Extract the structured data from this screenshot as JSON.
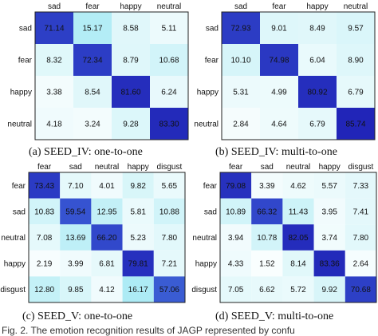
{
  "chart_data": [
    {
      "type": "heatmap",
      "caption": "(a) SEED_IV: one-to-one",
      "rows": [
        "sad",
        "fear",
        "happy",
        "neutral"
      ],
      "cols": [
        "sad",
        "fear",
        "happy",
        "neutral"
      ],
      "values": [
        [
          71.14,
          15.17,
          8.58,
          5.11
        ],
        [
          8.32,
          72.34,
          8.79,
          10.68
        ],
        [
          3.38,
          8.54,
          81.6,
          6.24
        ],
        [
          4.18,
          3.24,
          9.28,
          83.3
        ]
      ],
      "value_labels": [
        [
          "71.14",
          "15.17",
          "8.58",
          "5.11"
        ],
        [
          "8.32",
          "72.34",
          "8.79",
          "10.68"
        ],
        [
          "3.38",
          "8.54",
          "81.60",
          "6.24"
        ],
        [
          "4.18",
          "3.24",
          "9.28",
          "83.30"
        ]
      ]
    },
    {
      "type": "heatmap",
      "caption": "(b) SEED_IV: multi-to-one",
      "rows": [
        "sad",
        "fear",
        "happy",
        "neutral"
      ],
      "cols": [
        "sad",
        "fear",
        "happy",
        "neutral"
      ],
      "values": [
        [
          72.93,
          9.01,
          8.49,
          9.57
        ],
        [
          10.1,
          74.98,
          6.04,
          8.9
        ],
        [
          5.31,
          4.99,
          80.92,
          6.79
        ],
        [
          2.84,
          4.64,
          6.79,
          85.74
        ]
      ],
      "value_labels": [
        [
          "72.93",
          "9.01",
          "8.49",
          "9.57"
        ],
        [
          "10.10",
          "74.98",
          "6.04",
          "8.90"
        ],
        [
          "5.31",
          "4.99",
          "80.92",
          "6.79"
        ],
        [
          "2.84",
          "4.64",
          "6.79",
          "85.74"
        ]
      ]
    },
    {
      "type": "heatmap",
      "caption": "(c) SEED_V: one-to-one",
      "rows": [
        "fear",
        "sad",
        "neutral",
        "happy",
        "disgust"
      ],
      "cols": [
        "fear",
        "sad",
        "neutral",
        "happy",
        "disgust"
      ],
      "values": [
        [
          73.43,
          7.1,
          4.01,
          9.82,
          5.65
        ],
        [
          10.83,
          59.54,
          12.95,
          5.81,
          10.88
        ],
        [
          7.08,
          13.69,
          66.2,
          5.23,
          7.8
        ],
        [
          2.19,
          3.99,
          6.81,
          79.81,
          7.21
        ],
        [
          12.8,
          9.85,
          4.12,
          16.17,
          57.06
        ]
      ],
      "value_labels": [
        [
          "73.43",
          "7.10",
          "4.01",
          "9.82",
          "5.65"
        ],
        [
          "10.83",
          "59.54",
          "12.95",
          "5.81",
          "10.88"
        ],
        [
          "7.08",
          "13.69",
          "66.20",
          "5.23",
          "7.80"
        ],
        [
          "2.19",
          "3.99",
          "6.81",
          "79.81",
          "7.21"
        ],
        [
          "12.80",
          "9.85",
          "4.12",
          "16.17",
          "57.06"
        ]
      ]
    },
    {
      "type": "heatmap",
      "caption": "(d) SEED_V: multi-to-one",
      "rows": [
        "fear",
        "sad",
        "neutral",
        "happy",
        "disgust"
      ],
      "cols": [
        "fear",
        "sad",
        "neutral",
        "happy",
        "disgust"
      ],
      "values": [
        [
          79.08,
          3.39,
          4.62,
          5.57,
          7.33
        ],
        [
          10.89,
          66.32,
          11.43,
          3.95,
          7.41
        ],
        [
          3.94,
          10.78,
          82.05,
          3.74,
          7.8
        ],
        [
          4.33,
          1.52,
          8.14,
          83.36,
          2.64
        ],
        [
          7.05,
          6.62,
          5.72,
          9.92,
          70.68
        ]
      ],
      "value_labels": [
        [
          "79.08",
          "3.39",
          "4.62",
          "5.57",
          "7.33"
        ],
        [
          "10.89",
          "66.32",
          "11.43",
          "3.95",
          "7.41"
        ],
        [
          "3.94",
          "10.78",
          "82.05",
          "3.74",
          "7.80"
        ],
        [
          "4.33",
          "1.52",
          "8.14",
          "83.36",
          "2.64"
        ],
        [
          "7.05",
          "6.62",
          "5.72",
          "9.92",
          "70.68"
        ]
      ]
    }
  ],
  "figure_caption_fragment": "Fig. 2. The emotion recognition results of JAGP represented by confu"
}
